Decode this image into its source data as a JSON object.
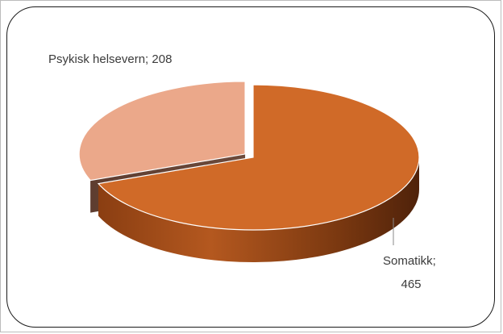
{
  "chart_data": {
    "type": "pie",
    "title": "",
    "categories": [
      "Somatikk",
      "Psykisk helsevern"
    ],
    "values": [
      465,
      208
    ],
    "colors": {
      "Somatikk": "#D06A28",
      "Psykisk helsevern": "#EBA88A"
    },
    "exploded": "Psykisk helsevern",
    "three_d": true,
    "legend": "none",
    "data_labels": [
      {
        "category": "Somatikk",
        "value": 465,
        "line1": "Somatikk;",
        "line2": "465"
      },
      {
        "category": "Psykisk helsevern",
        "value": 208,
        "line1": "Psykisk helsevern; 208"
      }
    ]
  }
}
